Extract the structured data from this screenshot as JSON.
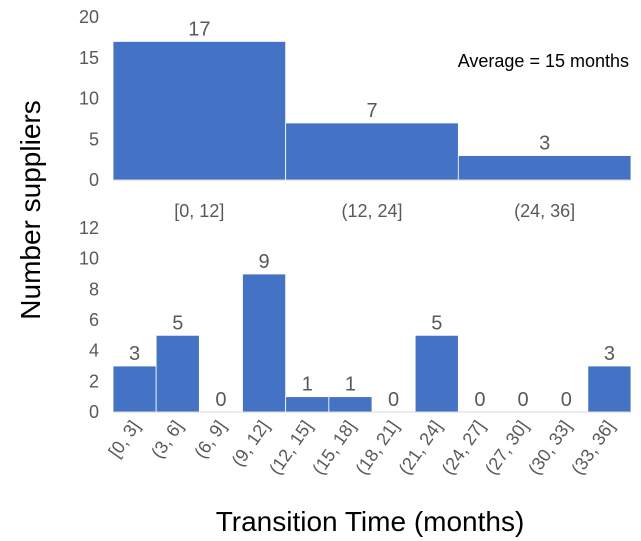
{
  "colors": {
    "bar": "#4472C4",
    "bar_edge": "#ffffff",
    "axis": "#d9d9d9",
    "tick_text": "#595959"
  },
  "chart_data": [
    {
      "type": "bar",
      "categories": [
        "[0, 12]",
        "(12, 24]",
        "(24, 36]"
      ],
      "values": [
        17,
        7,
        3
      ],
      "data_labels": [
        "17",
        "7",
        "3"
      ],
      "yticks": [
        "0",
        "5",
        "10",
        "15",
        "20"
      ],
      "ylim": [
        0,
        20
      ],
      "annotation": "Average = 15 months",
      "grid": false
    },
    {
      "type": "bar",
      "categories": [
        "[0, 3]",
        "(3, 6]",
        "(6, 9]",
        "(9, 12]",
        "(12, 15]",
        "(15, 18]",
        "(18, 21]",
        "(21, 24]",
        "(24, 27]",
        "(27, 30]",
        "(30, 33]",
        "(33, 36]"
      ],
      "values": [
        3,
        5,
        0,
        9,
        1,
        1,
        0,
        5,
        0,
        0,
        0,
        3
      ],
      "data_labels": [
        "3",
        "5",
        "0",
        "9",
        "1",
        "1",
        "0",
        "5",
        "0",
        "0",
        "0",
        "3"
      ],
      "yticks": [
        "0",
        "2",
        "4",
        "6",
        "8",
        "10",
        "12"
      ],
      "ylim": [
        0,
        12
      ],
      "grid": false
    }
  ],
  "ylabel": "Number suppliers",
  "xlabel": "Transition Time (months)"
}
